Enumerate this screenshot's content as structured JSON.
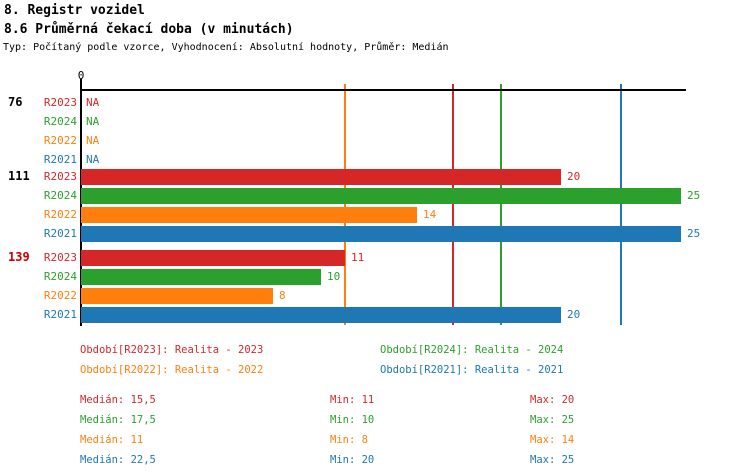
{
  "header": {
    "title": "8. Registr vozidel",
    "subtitle": "8.6 Průměrná čekací doba (v minutách)",
    "meta": "Typ: Počítaný podle vzorce, Vyhodnocení: Absolutní hodnoty, Průměr: Medián"
  },
  "colors": {
    "axis": "#000000",
    "red": "#d62728",
    "green": "#2ca02c",
    "orange": "#ff7f0e",
    "blue": "#1f77b4",
    "group_highlight": "#cc0000"
  },
  "chart_data": {
    "type": "bar",
    "orientation": "horizontal",
    "value_axis": {
      "zero_label": "0",
      "xlim": [
        0,
        25.2
      ],
      "gridlines": false
    },
    "na_text": "NA",
    "series": [
      {
        "id": "R2023",
        "name": "Období[R2023]: Realita - 2023",
        "color": "#d62728",
        "median": 15.5,
        "median_label": "Medián: 15,5",
        "min_label": "Min: 11",
        "max_label": "Max: 20"
      },
      {
        "id": "R2024",
        "name": "Období[R2024]: Realita - 2024",
        "color": "#2ca02c",
        "median": 17.5,
        "median_label": "Medián: 17,5",
        "min_label": "Min: 10",
        "max_label": "Max: 25"
      },
      {
        "id": "R2022",
        "name": "Období[R2022]: Realita - 2022",
        "color": "#ff7f0e",
        "median": 11,
        "median_label": "Medián: 11",
        "min_label": "Min: 8",
        "max_label": "Max: 14"
      },
      {
        "id": "R2021",
        "name": "Období[R2021]: Realita - 2021",
        "color": "#1f77b4",
        "median": 22.5,
        "median_label": "Medián: 22,5",
        "min_label": "Min: 20",
        "max_label": "Max: 25"
      }
    ],
    "groups": [
      {
        "label": "76",
        "label_color": "#000000",
        "values": [
          null,
          null,
          null,
          null
        ]
      },
      {
        "label": "111",
        "label_color": "#000000",
        "values": [
          20,
          25,
          14,
          25
        ]
      },
      {
        "label": "139",
        "label_color": "#cc0000",
        "values": [
          11,
          10,
          8,
          20
        ]
      }
    ]
  }
}
